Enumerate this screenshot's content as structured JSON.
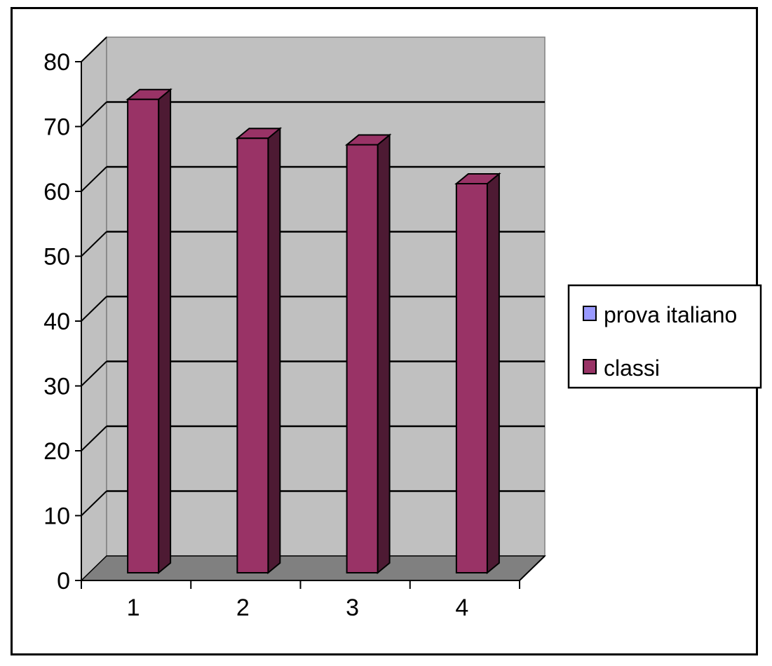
{
  "chart_data": {
    "type": "bar",
    "title": "",
    "xlabel": "",
    "ylabel": "",
    "categories": [
      "1",
      "2",
      "3",
      "4"
    ],
    "series": [
      {
        "name": "prova italiano",
        "values": [
          0,
          0,
          0,
          0
        ],
        "color": "#9999ff"
      },
      {
        "name": "classi",
        "values": [
          73,
          67,
          66,
          60
        ],
        "color": "#993366"
      }
    ],
    "ylim": [
      0,
      80
    ],
    "yticks": [
      "0",
      "10",
      "20",
      "30",
      "40",
      "50",
      "60",
      "70",
      "80"
    ],
    "grid": true,
    "legend": "right",
    "three_d": true,
    "wall_color": "#c0c0c0",
    "floor_color": "#808080"
  },
  "legend": {
    "items": [
      {
        "label": "prova italiano",
        "color": "#9999ff"
      },
      {
        "label": "classi",
        "color": "#993366"
      }
    ]
  }
}
